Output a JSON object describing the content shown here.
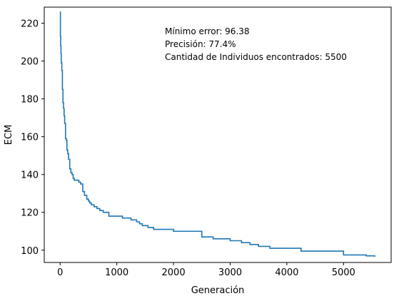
{
  "chart_data": {
    "type": "line",
    "title": "",
    "xlabel": "Generación",
    "ylabel": "ECM",
    "xlim": [
      -280,
      5840
    ],
    "ylim": [
      93.5,
      228.5
    ],
    "xticks": [
      0,
      1000,
      2000,
      3000,
      4000,
      5000
    ],
    "yticks": [
      100,
      120,
      140,
      160,
      180,
      200,
      220
    ],
    "grid": false,
    "legend": "none",
    "series": [
      {
        "name": "ECM",
        "color": "#1f77b4",
        "step": true,
        "x": [
          0,
          5,
          10,
          15,
          20,
          30,
          40,
          50,
          60,
          70,
          80,
          95,
          110,
          120,
          135,
          150,
          170,
          190,
          210,
          230,
          250,
          270,
          300,
          330,
          360,
          400,
          430,
          470,
          500,
          520,
          550,
          600,
          650,
          700,
          760,
          800,
          860,
          950,
          1000,
          1100,
          1250,
          1350,
          1400,
          1450,
          1550,
          1650,
          1700,
          1750,
          2000,
          2200,
          2500,
          2700,
          2900,
          3000,
          3200,
          3350,
          3500,
          3700,
          4250,
          5000,
          5400,
          5550
        ],
        "y": [
          226,
          213,
          208,
          204,
          199,
          195,
          185,
          178,
          175,
          171,
          167,
          159,
          158,
          153,
          151,
          148,
          143,
          141,
          140,
          138,
          137,
          137,
          137,
          136,
          135,
          131,
          129,
          127,
          126,
          125,
          124,
          123,
          122,
          121,
          120,
          120,
          118,
          118,
          118,
          117,
          116,
          115,
          114,
          113,
          112,
          111,
          111,
          111,
          110,
          110,
          107,
          106,
          106,
          105,
          104,
          103,
          102,
          101,
          99.5,
          97.5,
          97,
          96.5
        ]
      }
    ],
    "annotations": [
      "Mínimo error:  96.38",
      "Precisión: 77.4%",
      "Cantidad de Individuos encontrados:  5500"
    ]
  }
}
